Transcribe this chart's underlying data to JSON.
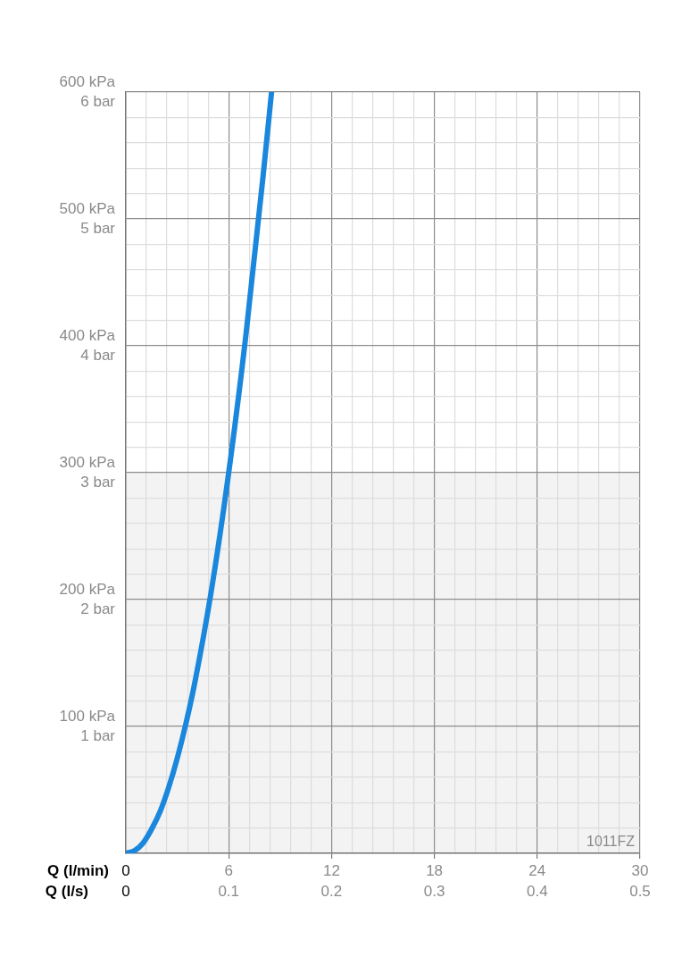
{
  "chart_data": {
    "type": "line",
    "xlabel": "Q (l/min)",
    "x2label": "Q (l/s)",
    "xlim": [
      0,
      30
    ],
    "xticks": [
      0,
      {
        "value": 1.2,
        "label": null
      },
      {
        "value": 2.4,
        "label": null
      },
      {
        "value": 3.6,
        "label": null
      },
      {
        "value": 4.8,
        "label": null
      },
      6,
      {
        "value": 7.2,
        "label": null
      },
      {
        "value": 8.4,
        "label": null
      },
      {
        "value": 9.6,
        "label": null
      },
      {
        "value": 10.8,
        "label": null
      },
      12,
      {
        "value": 13.2,
        "label": null
      },
      {
        "value": 14.4,
        "label": null
      },
      {
        "value": 15.6,
        "label": null
      },
      {
        "value": 16.8,
        "label": null
      },
      18,
      {
        "value": 19.2,
        "label": null
      },
      {
        "value": 20.4,
        "label": null
      },
      {
        "value": 21.6,
        "label": null
      },
      {
        "value": 22.8,
        "label": null
      },
      24,
      {
        "value": 25.2,
        "label": null
      },
      {
        "value": 26.4,
        "label": null
      },
      {
        "value": 27.6,
        "label": null
      },
      {
        "value": 28.8,
        "label": null
      },
      30
    ],
    "x2lim": [
      0,
      0.5
    ],
    "x2ticks": [
      0,
      0.1,
      0.2,
      0.3,
      0.4,
      0.5
    ],
    "ylim": [
      0,
      600
    ],
    "yticks": [
      {
        "value": 0,
        "label": null
      },
      {
        "value": 20,
        "label": null
      },
      {
        "value": 40,
        "label": null
      },
      {
        "value": 60,
        "label": null
      },
      {
        "value": 80,
        "label": null
      },
      {
        "value": 100,
        "label": "100 kPa"
      },
      {
        "value": 120,
        "label": null
      },
      {
        "value": 140,
        "label": null
      },
      {
        "value": 160,
        "label": null
      },
      {
        "value": 180,
        "label": null
      },
      {
        "value": 200,
        "label": "200 kPa"
      },
      {
        "value": 220,
        "label": null
      },
      {
        "value": 240,
        "label": null
      },
      {
        "value": 260,
        "label": null
      },
      {
        "value": 280,
        "label": null
      },
      {
        "value": 300,
        "label": "300 kPa"
      },
      {
        "value": 320,
        "label": null
      },
      {
        "value": 340,
        "label": null
      },
      {
        "value": 360,
        "label": null
      },
      {
        "value": 380,
        "label": null
      },
      {
        "value": 400,
        "label": "400 kPa"
      },
      {
        "value": 420,
        "label": null
      },
      {
        "value": 440,
        "label": null
      },
      {
        "value": 460,
        "label": null
      },
      {
        "value": 480,
        "label": null
      },
      {
        "value": 500,
        "label": "500 kPa"
      },
      {
        "value": 520,
        "label": null
      },
      {
        "value": 540,
        "label": null
      },
      {
        "value": 560,
        "label": null
      },
      {
        "value": 580,
        "label": null
      },
      {
        "value": 600,
        "label": "600 kPa"
      }
    ],
    "y2lim": [
      0,
      6
    ],
    "y2ticks": [
      {
        "value": 1,
        "label": "1 bar"
      },
      {
        "value": 2,
        "label": "2 bar"
      },
      {
        "value": 3,
        "label": "3 bar"
      },
      {
        "value": 4,
        "label": "4 bar"
      },
      {
        "value": 5,
        "label": "5 bar"
      },
      {
        "value": 6,
        "label": "6 bar"
      }
    ],
    "grid": true,
    "legend": false,
    "marker": "none",
    "line_style": "solid",
    "bands": [
      {
        "axis": "y",
        "from": 0,
        "to": 300,
        "color": "#f3f3f3"
      }
    ],
    "annotations": [
      "1011FZ"
    ],
    "series": [
      {
        "color": "#1a87dc",
        "x": [
          0,
          0.5,
          1,
          1.5,
          2,
          2.5,
          3,
          3.5,
          4,
          5,
          6,
          7,
          8,
          8.5
        ],
        "values": [
          0,
          2,
          8,
          19,
          33,
          52,
          75,
          102,
          133,
          208,
          300,
          408,
          533,
          600
        ]
      }
    ]
  }
}
